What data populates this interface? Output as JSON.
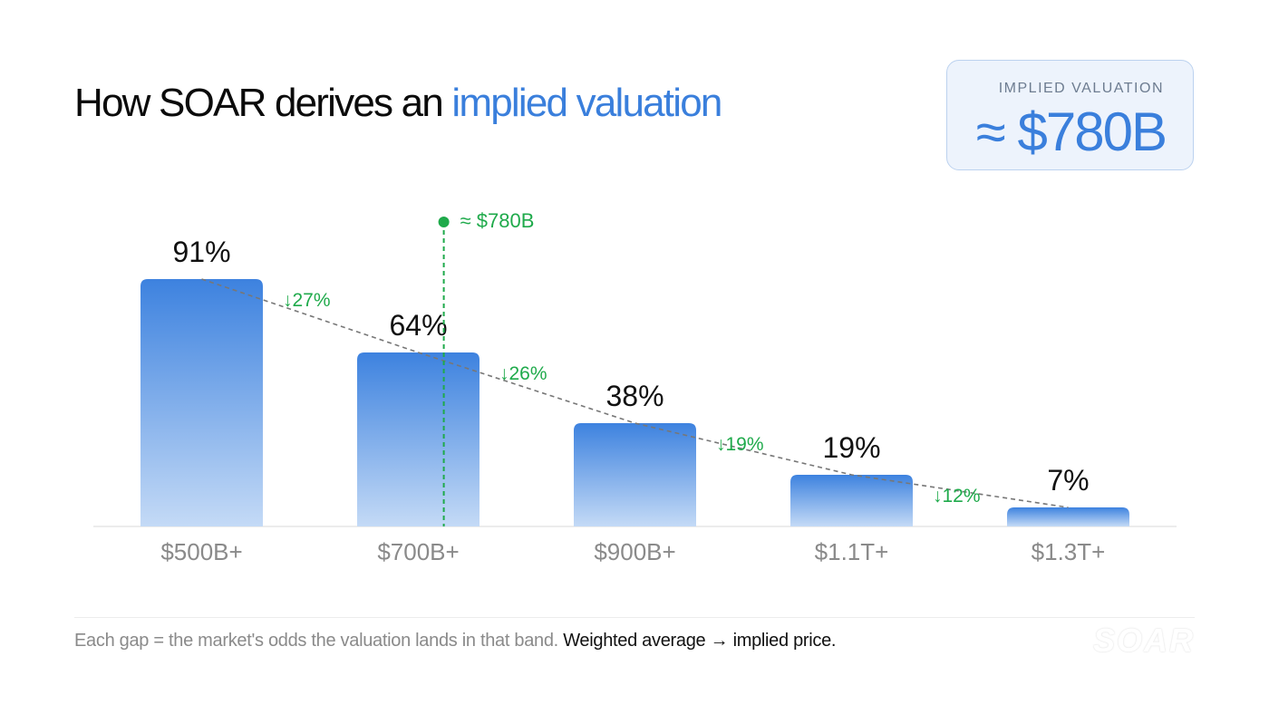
{
  "header": {
    "title_main": "How SOAR derives an ",
    "title_accent": "implied valuation"
  },
  "card": {
    "label": "IMPLIED VALUATION",
    "value": "≈ $780B"
  },
  "chart_data": {
    "type": "bar",
    "title": "",
    "categories": [
      "$500B+",
      "$700B+",
      "$900B+",
      "$1.1T+",
      "$1.3T+"
    ],
    "values": [
      91,
      64,
      38,
      19,
      7
    ],
    "value_labels": [
      "91%",
      "64%",
      "38%",
      "19%",
      "7%"
    ],
    "ylim": [
      0,
      100
    ],
    "gaps": [
      "↓27%",
      "↓26%",
      "↓19%",
      "↓12%"
    ],
    "marker": {
      "label": "≈ $780B",
      "position": 780
    },
    "colors": {
      "bar_top": "#3d82df",
      "bar_bottom": "#c4daf6",
      "marker": "#1faa4b",
      "trend": "#777777"
    }
  },
  "footer": {
    "text": "Each gap = the market's odds the valuation lands in that band. ",
    "strong": "Weighted average → implied price."
  },
  "logo": "SOAR"
}
